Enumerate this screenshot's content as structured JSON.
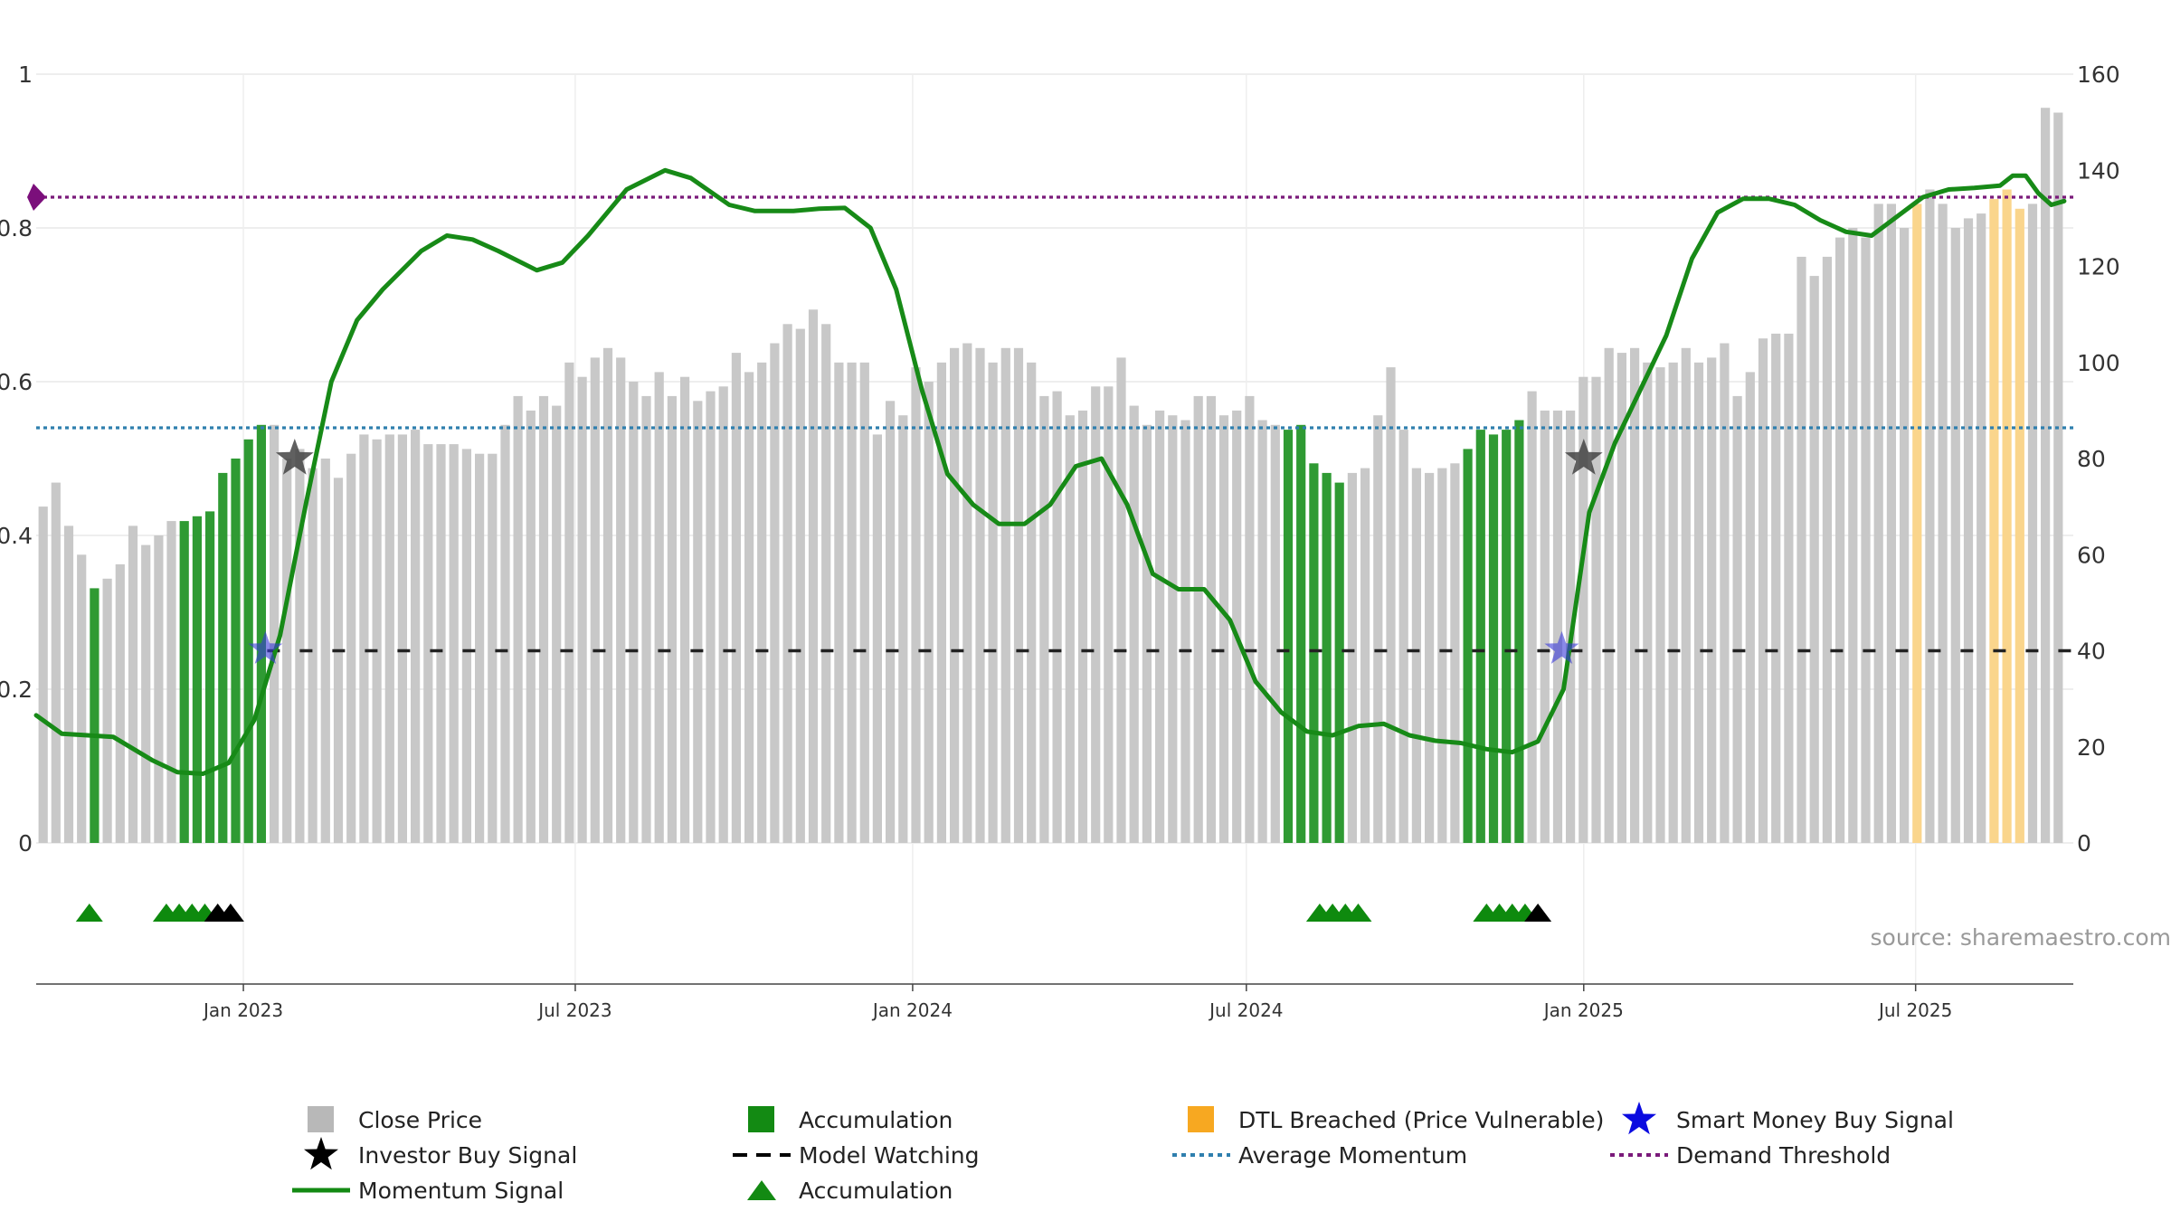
{
  "chart_data": {
    "type": "bar",
    "left_axis": {
      "range": [
        0,
        1
      ],
      "ticks": [
        "0",
        "0.2",
        "0.4",
        "0.6",
        "0.8",
        "1"
      ]
    },
    "right_axis": {
      "range": [
        0,
        160
      ],
      "ticks": [
        "0",
        "20",
        "40",
        "60",
        "80",
        "100",
        "120",
        "140",
        "160"
      ]
    },
    "x_range": [
      "2022-09-10",
      "2025-09-25"
    ],
    "x_ticks": [
      {
        "date": "2023-01-01",
        "label": "Jan 2023"
      },
      {
        "date": "2023-07-01",
        "label": "Jul 2023"
      },
      {
        "date": "2024-01-01",
        "label": "Jan 2024"
      },
      {
        "date": "2024-07-01",
        "label": "Jul 2024"
      },
      {
        "date": "2025-01-01",
        "label": "Jan 2025"
      },
      {
        "date": "2025-07-01",
        "label": "Jul 2025"
      }
    ],
    "close_price": {
      "start_date": "2022-09-10",
      "interval_days": 7,
      "values": [
        70,
        75,
        66,
        60,
        53,
        55,
        58,
        66,
        62,
        64,
        67,
        67,
        68,
        69,
        77,
        80,
        84,
        87,
        87,
        80,
        82,
        78,
        80,
        76,
        81,
        85,
        84,
        85,
        85,
        86,
        83,
        83,
        83,
        82,
        81,
        81,
        87,
        93,
        90,
        93,
        91,
        100,
        97,
        101,
        103,
        101,
        96,
        93,
        98,
        93,
        97,
        92,
        94,
        95,
        102,
        98,
        100,
        104,
        108,
        107,
        111,
        108,
        100,
        100,
        100,
        85,
        92,
        89,
        99,
        96,
        100,
        103,
        104,
        103,
        100,
        103,
        103,
        100,
        93,
        94,
        89,
        90,
        95,
        95,
        101,
        91,
        87,
        90,
        89,
        88,
        93,
        93,
        89,
        90,
        93,
        88,
        87,
        86,
        87,
        79,
        77,
        75,
        77,
        78,
        89,
        99,
        86,
        78,
        77,
        78,
        79,
        82,
        86,
        85,
        86,
        88,
        94,
        90,
        90,
        90,
        97,
        97,
        103,
        102,
        103,
        100,
        99,
        100,
        103,
        100,
        101,
        104,
        93,
        98,
        105,
        106,
        106,
        122,
        118,
        122,
        126,
        128,
        126,
        133,
        133,
        128,
        133,
        136,
        133,
        128,
        130,
        131,
        134,
        136,
        132,
        133,
        153,
        152
      ],
      "category_indices": {
        "accumulation": [
          4,
          11,
          12,
          13,
          14,
          15,
          16,
          17,
          97,
          98,
          99,
          100,
          101,
          111,
          112,
          113,
          114,
          115
        ],
        "dtl_breached": [
          146,
          152,
          153,
          154
        ]
      }
    },
    "series": [
      {
        "name": "Momentum Signal",
        "points": [
          [
            "2022-09-10",
            0.166
          ],
          [
            "2022-09-24",
            0.142
          ],
          [
            "2022-10-22",
            0.138
          ],
          [
            "2022-11-12",
            0.108
          ],
          [
            "2022-11-26",
            0.092
          ],
          [
            "2022-12-10",
            0.09
          ],
          [
            "2022-12-24",
            0.104
          ],
          [
            "2023-01-07",
            0.16
          ],
          [
            "2023-01-21",
            0.27
          ],
          [
            "2023-02-04",
            0.44
          ],
          [
            "2023-02-18",
            0.6
          ],
          [
            "2023-03-04",
            0.68
          ],
          [
            "2023-03-18",
            0.72
          ],
          [
            "2023-04-08",
            0.77
          ],
          [
            "2023-04-22",
            0.79
          ],
          [
            "2023-05-06",
            0.785
          ],
          [
            "2023-05-20",
            0.77
          ],
          [
            "2023-06-10",
            0.745
          ],
          [
            "2023-06-24",
            0.755
          ],
          [
            "2023-07-08",
            0.79
          ],
          [
            "2023-07-29",
            0.85
          ],
          [
            "2023-08-19",
            0.875
          ],
          [
            "2023-09-02",
            0.865
          ],
          [
            "2023-09-23",
            0.83
          ],
          [
            "2023-10-07",
            0.822
          ],
          [
            "2023-10-28",
            0.822
          ],
          [
            "2023-11-11",
            0.825
          ],
          [
            "2023-11-25",
            0.826
          ],
          [
            "2023-12-09",
            0.8
          ],
          [
            "2023-12-23",
            0.72
          ],
          [
            "2024-01-06",
            0.59
          ],
          [
            "2024-01-20",
            0.48
          ],
          [
            "2024-02-03",
            0.44
          ],
          [
            "2024-02-17",
            0.415
          ],
          [
            "2024-03-02",
            0.415
          ],
          [
            "2024-03-16",
            0.44
          ],
          [
            "2024-03-30",
            0.49
          ],
          [
            "2024-04-13",
            0.5
          ],
          [
            "2024-04-27",
            0.44
          ],
          [
            "2024-05-11",
            0.35
          ],
          [
            "2024-05-25",
            0.33
          ],
          [
            "2024-06-08",
            0.33
          ],
          [
            "2024-06-22",
            0.29
          ],
          [
            "2024-07-06",
            0.21
          ],
          [
            "2024-07-20",
            0.17
          ],
          [
            "2024-08-03",
            0.145
          ],
          [
            "2024-08-17",
            0.14
          ],
          [
            "2024-08-31",
            0.152
          ],
          [
            "2024-09-14",
            0.155
          ],
          [
            "2024-09-28",
            0.14
          ],
          [
            "2024-10-12",
            0.133
          ],
          [
            "2024-10-26",
            0.13
          ],
          [
            "2024-11-09",
            0.122
          ],
          [
            "2024-11-23",
            0.118
          ],
          [
            "2024-12-07",
            0.132
          ],
          [
            "2024-12-21",
            0.2
          ],
          [
            "2025-01-04",
            0.43
          ],
          [
            "2025-01-18",
            0.52
          ],
          [
            "2025-02-01",
            0.59
          ],
          [
            "2025-02-15",
            0.66
          ],
          [
            "2025-03-01",
            0.76
          ],
          [
            "2025-03-15",
            0.82
          ],
          [
            "2025-03-29",
            0.838
          ],
          [
            "2025-04-12",
            0.838
          ],
          [
            "2025-04-26",
            0.83
          ],
          [
            "2025-05-10",
            0.81
          ],
          [
            "2025-05-24",
            0.795
          ],
          [
            "2025-06-07",
            0.79
          ],
          [
            "2025-06-21",
            0.815
          ],
          [
            "2025-07-05",
            0.84
          ],
          [
            "2025-07-19",
            0.85
          ],
          [
            "2025-08-02",
            0.852
          ],
          [
            "2025-08-16",
            0.855
          ],
          [
            "2025-08-23",
            0.868
          ],
          [
            "2025-08-30",
            0.868
          ],
          [
            "2025-09-06",
            0.845
          ],
          [
            "2025-09-13",
            0.83
          ],
          [
            "2025-09-20",
            0.835
          ]
        ]
      }
    ],
    "model_watching": {
      "value": 40,
      "from": "2023-01-14",
      "to": "2025-09-25"
    },
    "average_momentum": 0.54,
    "demand_threshold": 0.84,
    "investor_buy_signals": [
      [
        "2023-01-29",
        0.5
      ],
      [
        "2025-01-01",
        0.5
      ]
    ],
    "smart_money_signals": [
      [
        "2023-01-13",
        0.252
      ],
      [
        "2024-12-20",
        0.252
      ]
    ],
    "accumulation_markers": [
      {
        "date": "2022-10-09",
        "color": "green"
      },
      {
        "date": "2022-11-20",
        "color": "green"
      },
      {
        "date": "2022-11-27",
        "color": "green"
      },
      {
        "date": "2022-12-04",
        "color": "green"
      },
      {
        "date": "2022-12-11",
        "color": "green"
      },
      {
        "date": "2022-12-18",
        "color": "black"
      },
      {
        "date": "2022-12-25",
        "color": "black"
      },
      {
        "date": "2024-08-10",
        "color": "green"
      },
      {
        "date": "2024-08-17",
        "color": "green"
      },
      {
        "date": "2024-08-24",
        "color": "green"
      },
      {
        "date": "2024-08-31",
        "color": "green"
      },
      {
        "date": "2024-11-09",
        "color": "green"
      },
      {
        "date": "2024-11-16",
        "color": "green"
      },
      {
        "date": "2024-11-23",
        "color": "green"
      },
      {
        "date": "2024-11-30",
        "color": "green"
      },
      {
        "date": "2024-12-07",
        "color": "black"
      }
    ],
    "colors": {
      "close_price": "#c8c8c8",
      "accumulation": "#2f9a33",
      "dtl_breached": "#fad58c",
      "momentum": "#178a17",
      "average_momentum": "#2f7fae",
      "demand_threshold": "#7a1a7a",
      "model_watching": "#222222",
      "smart_money": "#3a3ad8",
      "investor": "#444444",
      "marker_green": "#0e8a0e",
      "marker_black": "#000000"
    }
  },
  "source_label": "source: sharemaestro.com",
  "legend": [
    {
      "label": "Close Price",
      "symbol": "square",
      "color": "#b8b8b8"
    },
    {
      "label": "Accumulation",
      "symbol": "square",
      "color": "#138a13"
    },
    {
      "label": "DTL Breached (Price Vulnerable)",
      "symbol": "square",
      "color": "#f7a821"
    },
    {
      "label": "Smart Money Buy Signal",
      "symbol": "star",
      "color": "#0b0be0"
    },
    {
      "label": "Investor Buy Signal",
      "symbol": "star",
      "color": "#000000"
    },
    {
      "label": "Model Watching",
      "symbol": "dash",
      "color": "#000000"
    },
    {
      "label": "Average Momentum",
      "symbol": "dot",
      "color": "#2f7fae"
    },
    {
      "label": "Demand Threshold",
      "symbol": "dot",
      "color": "#7a1a7a"
    },
    {
      "label": "Momentum Signal",
      "symbol": "line",
      "color": "#138a13"
    },
    {
      "label": "Accumulation",
      "symbol": "triangle",
      "color": "#138a13"
    }
  ]
}
